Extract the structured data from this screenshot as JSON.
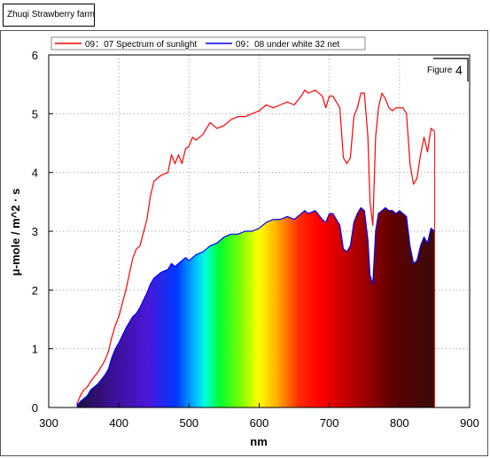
{
  "header": {
    "farm_label": "Zhuqi Strawberry farm"
  },
  "chart_data": {
    "type": "line",
    "xlabel": "nm",
    "ylabel": "μ-mole  /  m^2 · s",
    "xlim": [
      300,
      900
    ],
    "ylim": [
      0,
      6
    ],
    "xticks": [
      300,
      400,
      500,
      600,
      700,
      800,
      900
    ],
    "yticks": [
      0,
      1,
      2,
      3,
      4,
      5,
      6
    ],
    "grid": true,
    "legend_position": "top",
    "annotation": {
      "prefix": "Figure",
      "number": "4"
    },
    "series": [
      {
        "name": "09：07 Spectrum of sunlight",
        "color": "#ff0000",
        "x": [
          340,
          345,
          350,
          355,
          360,
          370,
          380,
          385,
          390,
          395,
          400,
          410,
          420,
          425,
          430,
          440,
          445,
          450,
          460,
          470,
          475,
          480,
          485,
          490,
          495,
          500,
          505,
          510,
          520,
          530,
          540,
          550,
          560,
          570,
          580,
          590,
          600,
          610,
          620,
          630,
          640,
          650,
          660,
          665,
          670,
          680,
          690,
          695,
          700,
          705,
          710,
          715,
          720,
          725,
          730,
          735,
          740,
          745,
          750,
          755,
          758,
          762,
          766,
          770,
          775,
          780,
          785,
          790,
          795,
          800,
          805,
          810,
          815,
          820,
          825,
          830,
          835,
          840,
          845,
          850
        ],
        "values": [
          0.05,
          0.2,
          0.3,
          0.35,
          0.45,
          0.6,
          0.8,
          0.95,
          1.2,
          1.4,
          1.55,
          2.0,
          2.55,
          2.7,
          2.75,
          3.2,
          3.6,
          3.85,
          3.95,
          4.0,
          4.3,
          4.15,
          4.3,
          4.15,
          4.4,
          4.45,
          4.6,
          4.55,
          4.65,
          4.85,
          4.75,
          4.8,
          4.9,
          4.95,
          4.95,
          5.0,
          5.05,
          5.15,
          5.1,
          5.15,
          5.2,
          5.15,
          5.3,
          5.4,
          5.35,
          5.4,
          5.3,
          5.1,
          5.3,
          5.3,
          5.2,
          5.1,
          4.25,
          4.15,
          4.25,
          4.95,
          5.1,
          5.35,
          5.35,
          4.6,
          3.5,
          3.1,
          4.6,
          5.1,
          5.35,
          5.25,
          5.1,
          5.05,
          5.1,
          5.1,
          5.1,
          5.0,
          4.15,
          3.8,
          3.9,
          4.3,
          4.6,
          4.35,
          4.75,
          4.7
        ]
      },
      {
        "name": "09：08  under white 32 net",
        "color": "#0000ff",
        "x": [
          340,
          345,
          350,
          355,
          360,
          370,
          380,
          385,
          390,
          395,
          400,
          410,
          420,
          425,
          430,
          440,
          445,
          450,
          460,
          470,
          475,
          480,
          485,
          490,
          495,
          500,
          505,
          510,
          520,
          530,
          540,
          550,
          560,
          570,
          580,
          590,
          600,
          610,
          620,
          630,
          640,
          650,
          660,
          665,
          670,
          680,
          690,
          695,
          700,
          705,
          710,
          715,
          720,
          725,
          730,
          735,
          740,
          745,
          750,
          755,
          758,
          762,
          766,
          770,
          775,
          780,
          785,
          790,
          795,
          800,
          805,
          810,
          815,
          820,
          825,
          830,
          835,
          840,
          845,
          850
        ],
        "values": [
          0.03,
          0.1,
          0.15,
          0.2,
          0.3,
          0.4,
          0.55,
          0.65,
          0.85,
          1.0,
          1.1,
          1.35,
          1.55,
          1.6,
          1.7,
          1.95,
          2.1,
          2.2,
          2.3,
          2.35,
          2.45,
          2.4,
          2.45,
          2.5,
          2.55,
          2.5,
          2.55,
          2.6,
          2.65,
          2.75,
          2.8,
          2.9,
          2.95,
          2.95,
          3.0,
          3.0,
          3.05,
          3.15,
          3.2,
          3.2,
          3.25,
          3.2,
          3.3,
          3.35,
          3.3,
          3.35,
          3.2,
          3.15,
          3.3,
          3.3,
          3.2,
          3.1,
          2.7,
          2.65,
          2.75,
          3.15,
          3.3,
          3.4,
          3.35,
          2.85,
          2.25,
          2.1,
          3.0,
          3.3,
          3.35,
          3.4,
          3.35,
          3.35,
          3.3,
          3.35,
          3.3,
          3.25,
          2.75,
          2.45,
          2.5,
          2.75,
          2.9,
          2.8,
          3.05,
          3.0
        ]
      }
    ]
  }
}
